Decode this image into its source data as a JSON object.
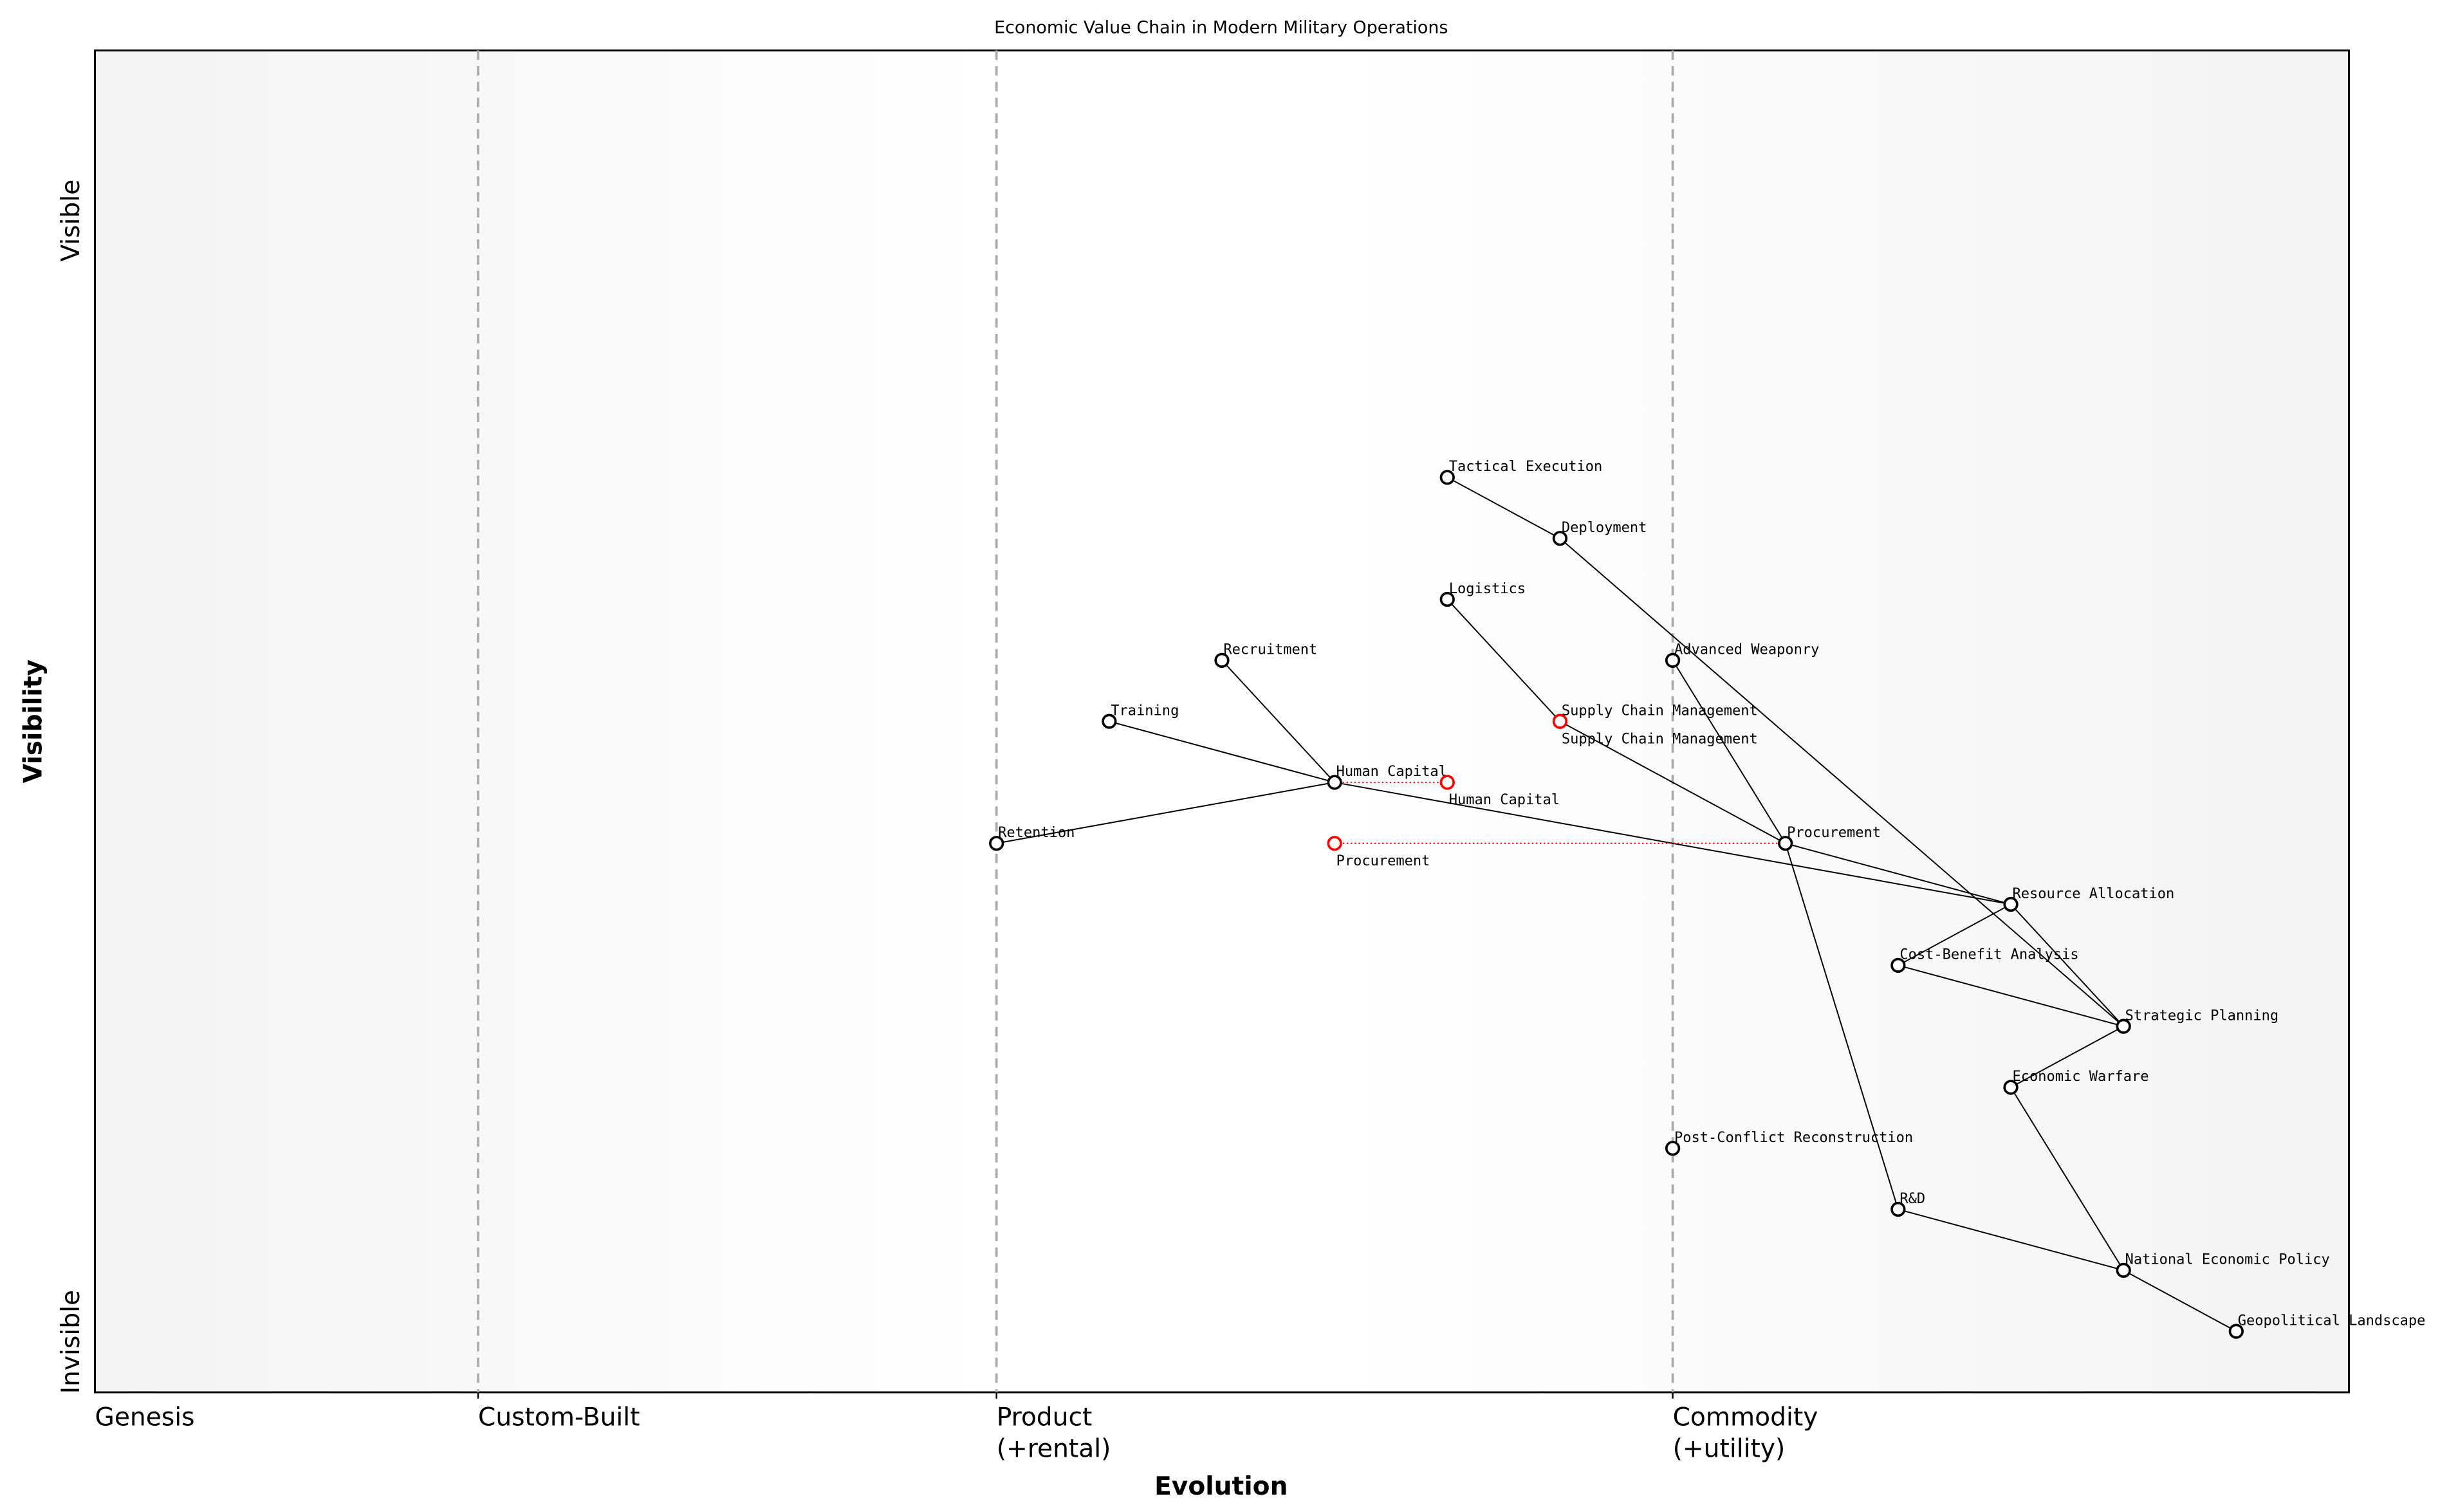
{
  "chart_data": {
    "type": "scatter",
    "title": "Economic Value Chain in Modern Military Operations",
    "xlabel": "Evolution",
    "ylabel": "Visibility",
    "xlim": [
      0,
      1
    ],
    "ylim": [
      0,
      1.1
    ],
    "grid": false,
    "y_ticks": [
      {
        "label": "Invisible",
        "value": 0
      },
      {
        "label": "Visible",
        "value": 1
      }
    ],
    "x_ticks": [
      {
        "label": "Genesis",
        "value": 0
      },
      {
        "label": "Custom-Built",
        "value": 0.17
      },
      {
        "label": "Product",
        "sub": "(+rental)",
        "value": 0.4
      },
      {
        "label": "Commodity",
        "sub": "(+utility)",
        "value": 0.7
      }
    ],
    "stage_dividers": [
      0.17,
      0.4,
      0.7
    ],
    "nodes": [
      {
        "name": "Tactical Execution",
        "x": 0.6,
        "y": 0.75
      },
      {
        "name": "Deployment",
        "x": 0.65,
        "y": 0.7
      },
      {
        "name": "Logistics",
        "x": 0.6,
        "y": 0.65
      },
      {
        "name": "Recruitment",
        "x": 0.5,
        "y": 0.6
      },
      {
        "name": "Advanced Weaponry",
        "x": 0.7,
        "y": 0.6
      },
      {
        "name": "Training",
        "x": 0.45,
        "y": 0.55
      },
      {
        "name": "Supply Chain Management",
        "x": 0.65,
        "y": 0.55
      },
      {
        "name": "Human Capital",
        "x": 0.55,
        "y": 0.5
      },
      {
        "name": "Retention",
        "x": 0.4,
        "y": 0.45
      },
      {
        "name": "Procurement",
        "x": 0.75,
        "y": 0.45
      },
      {
        "name": "Resource Allocation",
        "x": 0.85,
        "y": 0.4
      },
      {
        "name": "Cost-Benefit Analysis",
        "x": 0.8,
        "y": 0.35
      },
      {
        "name": "Strategic Planning",
        "x": 0.9,
        "y": 0.3
      },
      {
        "name": "Economic Warfare",
        "x": 0.85,
        "y": 0.25
      },
      {
        "name": "Post-Conflict Reconstruction",
        "x": 0.7,
        "y": 0.2
      },
      {
        "name": "R&D",
        "x": 0.8,
        "y": 0.15
      },
      {
        "name": "National Economic Policy",
        "x": 0.9,
        "y": 0.1
      },
      {
        "name": "Geopolitical Landscape",
        "x": 0.95,
        "y": 0.05
      }
    ],
    "evolved_nodes": [
      {
        "name": "Supply Chain Management",
        "x": 0.65,
        "y": 0.55,
        "from_x": 0.65
      },
      {
        "name": "Human Capital",
        "x": 0.6,
        "y": 0.5,
        "from_x": 0.55
      },
      {
        "name": "Procurement",
        "x": 0.55,
        "y": 0.45,
        "from_x": 0.75
      }
    ],
    "links": [
      [
        "Tactical Execution",
        "Deployment"
      ],
      [
        "Deployment",
        "Strategic Planning"
      ],
      [
        "Logistics",
        "Supply Chain Management"
      ],
      [
        "Supply Chain Management",
        "Procurement"
      ],
      [
        "Recruitment",
        "Human Capital"
      ],
      [
        "Training",
        "Human Capital"
      ],
      [
        "Retention",
        "Human Capital"
      ],
      [
        "Human Capital",
        "Resource Allocation"
      ],
      [
        "Advanced Weaponry",
        "Procurement"
      ],
      [
        "Procurement",
        "R&D"
      ],
      [
        "Procurement",
        "Resource Allocation"
      ],
      [
        "Resource Allocation",
        "Cost-Benefit Analysis"
      ],
      [
        "Resource Allocation",
        "Strategic Planning"
      ],
      [
        "Cost-Benefit Analysis",
        "Strategic Planning"
      ],
      [
        "Strategic Planning",
        "Economic Warfare"
      ],
      [
        "Economic Warfare",
        "National Economic Policy"
      ],
      [
        "R&D",
        "National Economic Policy"
      ],
      [
        "National Economic Policy",
        "Geopolitical Landscape"
      ]
    ],
    "colors": {
      "node": "#000000",
      "evolved": "#ff0000",
      "divider": "#aaaaaa",
      "edge_bg": "#f3f3f3",
      "center_bg": "#ffffff"
    }
  }
}
